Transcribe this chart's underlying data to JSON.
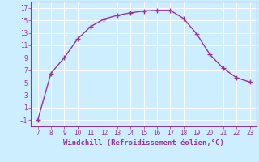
{
  "x": [
    7,
    8,
    9,
    10,
    11,
    12,
    13,
    14,
    15,
    16,
    17,
    18,
    19,
    20,
    21,
    22,
    23
  ],
  "y": [
    -1,
    6.5,
    9,
    12,
    14,
    15.2,
    15.8,
    16.2,
    16.5,
    16.6,
    16.6,
    15.3,
    12.8,
    9.5,
    7.3,
    5.8,
    5.1
  ],
  "line_color": "#993399",
  "marker": "+",
  "marker_size": 4,
  "marker_lw": 1.0,
  "line_width": 1.0,
  "bg_color": "#cceeff",
  "grid_color": "#ffffff",
  "xlabel": "Windchill (Refroidissement éolien,°C)",
  "xlabel_color": "#993399",
  "tick_color": "#993399",
  "spine_color": "#993399",
  "xlim": [
    6.5,
    23.5
  ],
  "ylim": [
    -2,
    18
  ],
  "xticks": [
    7,
    8,
    9,
    10,
    11,
    12,
    13,
    14,
    15,
    16,
    17,
    18,
    19,
    20,
    21,
    22,
    23
  ],
  "yticks": [
    -1,
    1,
    3,
    5,
    7,
    9,
    11,
    13,
    15,
    17
  ],
  "tick_fontsize": 5.5,
  "xlabel_fontsize": 6.5
}
